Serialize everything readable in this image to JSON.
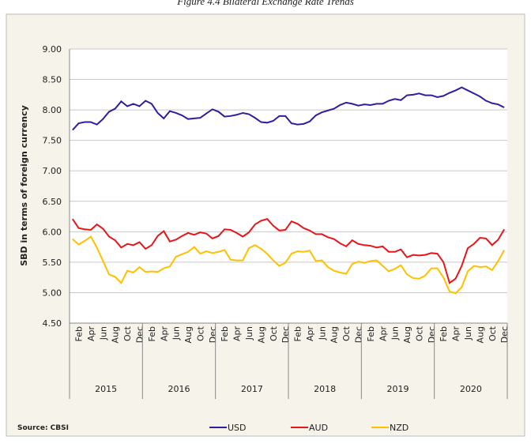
{
  "chart_data": {
    "type": "line",
    "title": "Figure 4.4 Bilateral Exchange Rate Trends",
    "ylabel": "SBD in terms of foreign currency",
    "source": "Source: CBSI",
    "categories": [
      null,
      "Feb",
      null,
      "Apr",
      null,
      "Jun",
      null,
      "Aug",
      null,
      "Oct",
      null,
      "Dec",
      null,
      "Feb",
      null,
      "Apr",
      null,
      "Jun",
      null,
      "Aug",
      null,
      "Oct",
      null,
      "Dec",
      null,
      "Feb",
      null,
      "Apr",
      null,
      "Jun",
      null,
      "Aug",
      null,
      "Oct",
      null,
      "Dec",
      null,
      "Feb",
      null,
      "Apr",
      null,
      "Jun",
      null,
      "Aug",
      null,
      "Oct",
      null,
      "Dec",
      null,
      "Feb",
      null,
      "Apr",
      null,
      "Jun",
      null,
      "Aug",
      null,
      "Oct",
      null,
      "Dec",
      null,
      "Feb",
      null,
      "Apr",
      null,
      "Jun",
      null,
      "Aug",
      null,
      "Oct",
      null,
      "Dec"
    ],
    "groups": [
      "2015",
      "2016",
      "2017",
      "2018",
      "2019",
      "2020"
    ],
    "series": [
      {
        "name": "USD",
        "color": "#2e1f9e",
        "values": [
          7.67,
          7.78,
          7.8,
          7.8,
          7.76,
          7.85,
          7.97,
          8.02,
          8.14,
          8.06,
          8.1,
          8.06,
          8.15,
          8.1,
          7.95,
          7.86,
          7.98,
          7.95,
          7.91,
          7.85,
          7.86,
          7.87,
          7.94,
          8.01,
          7.97,
          7.89,
          7.9,
          7.92,
          7.95,
          7.93,
          7.87,
          7.8,
          7.79,
          7.82,
          7.9,
          7.9,
          7.78,
          7.76,
          7.77,
          7.81,
          7.91,
          7.96,
          7.99,
          8.02,
          8.08,
          8.12,
          8.1,
          8.07,
          8.09,
          8.08,
          8.1,
          8.1,
          8.15,
          8.18,
          8.16,
          8.24,
          8.25,
          8.27,
          8.24,
          8.24,
          8.21,
          8.23,
          8.28,
          8.32,
          8.37,
          8.32,
          8.27,
          8.22,
          8.15,
          8.11,
          8.09,
          8.04
        ]
      },
      {
        "name": "AUD",
        "color": "#e8151b",
        "values": [
          6.21,
          6.06,
          6.04,
          6.03,
          6.12,
          6.05,
          5.92,
          5.86,
          5.74,
          5.8,
          5.78,
          5.83,
          5.72,
          5.78,
          5.93,
          6.01,
          5.84,
          5.87,
          5.93,
          5.98,
          5.95,
          5.99,
          5.97,
          5.89,
          5.93,
          6.04,
          6.03,
          5.98,
          5.92,
          5.99,
          6.12,
          6.18,
          6.21,
          6.1,
          6.02,
          6.03,
          6.17,
          6.13,
          6.06,
          6.02,
          5.96,
          5.96,
          5.91,
          5.88,
          5.81,
          5.76,
          5.86,
          5.8,
          5.78,
          5.77,
          5.74,
          5.76,
          5.67,
          5.67,
          5.71,
          5.58,
          5.62,
          5.61,
          5.62,
          5.65,
          5.64,
          5.5,
          5.16,
          5.23,
          5.44,
          5.73,
          5.8,
          5.9,
          5.89,
          5.78,
          5.87,
          6.04
        ]
      },
      {
        "name": "NZD",
        "color": "#ffc000",
        "values": [
          5.88,
          5.79,
          5.85,
          5.92,
          5.74,
          5.52,
          5.3,
          5.26,
          5.16,
          5.36,
          5.33,
          5.42,
          5.34,
          5.35,
          5.34,
          5.4,
          5.43,
          5.59,
          5.63,
          5.67,
          5.75,
          5.64,
          5.68,
          5.65,
          5.67,
          5.7,
          5.54,
          5.53,
          5.53,
          5.73,
          5.78,
          5.72,
          5.64,
          5.53,
          5.44,
          5.49,
          5.64,
          5.68,
          5.67,
          5.69,
          5.52,
          5.53,
          5.42,
          5.36,
          5.33,
          5.31,
          5.47,
          5.51,
          5.49,
          5.52,
          5.53,
          5.44,
          5.35,
          5.39,
          5.45,
          5.3,
          5.24,
          5.23,
          5.28,
          5.4,
          5.4,
          5.25,
          5.02,
          4.99,
          5.09,
          5.35,
          5.44,
          5.42,
          5.43,
          5.37,
          5.52,
          5.7
        ]
      }
    ],
    "ylim": [
      4.5,
      9
    ],
    "yticks": [
      {
        "value": 4.5,
        "label": "4.50"
      },
      {
        "value": 5,
        "label": "5.00"
      },
      {
        "value": 5.5,
        "label": "5.50"
      },
      {
        "value": 6,
        "label": "6.00"
      },
      {
        "value": 6.5,
        "label": "6.50"
      },
      {
        "value": 7,
        "label": "7.00"
      },
      {
        "value": 7.5,
        "label": "7.50"
      },
      {
        "value": 8,
        "label": "8.00"
      },
      {
        "value": 8.5,
        "label": "8.50"
      },
      {
        "value": 9,
        "label": "9.00"
      }
    ],
    "grid": true,
    "legend": "bottom"
  }
}
